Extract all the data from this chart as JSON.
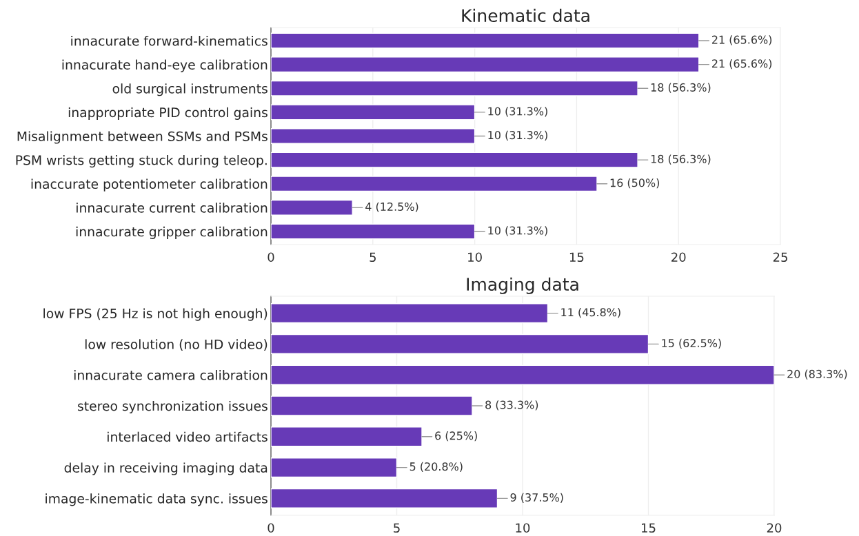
{
  "chart_data": [
    {
      "type": "bar",
      "orientation": "horizontal",
      "title": "Kinematic data",
      "categories": [
        "innacurate forward-kinematics",
        "innacurate hand-eye calibration",
        "old surgical instruments",
        "inappropriate PID control gains",
        "Misalignment between SSMs and PSMs",
        "PSM wrists getting stuck during teleop.",
        "inaccurate potentiometer calibration",
        "innacurate current calibration",
        "innacurate gripper calibration"
      ],
      "values": [
        21,
        21,
        18,
        10,
        10,
        18,
        16,
        4,
        10
      ],
      "value_labels": [
        "21 (65.6%)",
        "21 (65.6%)",
        "18 (56.3%)",
        "10 (31.3%)",
        "10 (31.3%)",
        "18 (56.3%)",
        "16 (50%)",
        "4 (12.5%)",
        "10 (31.3%)"
      ],
      "color": "#673ab7",
      "xlim": [
        0,
        25
      ],
      "xticks": [
        0,
        5,
        10,
        15,
        20,
        25
      ],
      "grid": "x"
    },
    {
      "type": "bar",
      "orientation": "horizontal",
      "title": "Imaging data",
      "categories": [
        "low FPS (25 Hz is not high enough)",
        "low resolution (no HD video)",
        "innacurate camera calibration",
        "stereo synchronization issues",
        "interlaced video artifacts",
        "delay in receiving imaging data",
        "image-kinematic data sync. issues"
      ],
      "values": [
        11,
        15,
        20,
        8,
        6,
        5,
        9
      ],
      "value_labels": [
        "11 (45.8%)",
        "15 (62.5%)",
        "20 (83.3%)",
        "8 (33.3%)",
        "6 (25%)",
        "5 (20.8%)",
        "9 (37.5%)"
      ],
      "color": "#673ab7",
      "xlim": [
        0,
        20
      ],
      "xticks": [
        0,
        5,
        10,
        15,
        20
      ],
      "grid": "x"
    }
  ]
}
